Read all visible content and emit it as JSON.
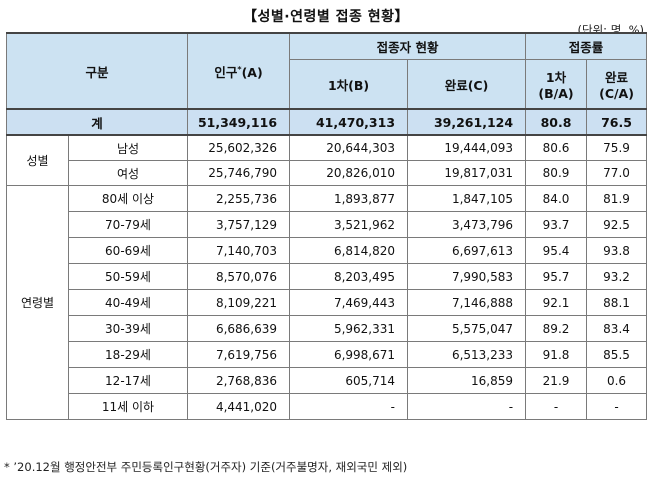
{
  "title": "【성별·연령별 접종 현황】",
  "unit": "(단위: 명, %)",
  "headers": {
    "category": "구분",
    "population": "인구",
    "population_sup": "*",
    "population_unit": "(A)",
    "vaccinated": "접종자 현황",
    "rate": "접종률",
    "first": "1차(B)",
    "complete": "완료(C)",
    "rate_first": "1차",
    "rate_first_sub": "(B/A)",
    "rate_complete": "완료",
    "rate_complete_sub": "(C/A)"
  },
  "total": {
    "label": "계",
    "population": "51,349,116",
    "first": "41,470,313",
    "complete": "39,261,124",
    "rate_first": "80.8",
    "rate_complete": "76.5"
  },
  "sex": {
    "group": "성별",
    "rows": [
      {
        "label": "남성",
        "population": "25,602,326",
        "first": "20,644,303",
        "complete": "19,444,093",
        "rate_first": "80.6",
        "rate_complete": "75.9"
      },
      {
        "label": "여성",
        "population": "25,746,790",
        "first": "20,826,010",
        "complete": "19,817,031",
        "rate_first": "80.9",
        "rate_complete": "77.0"
      }
    ]
  },
  "age": {
    "group": "연령별",
    "rows": [
      {
        "label": "80세 이상",
        "population": "2,255,736",
        "first": "1,893,877",
        "complete": "1,847,105",
        "rate_first": "84.0",
        "rate_complete": "81.9"
      },
      {
        "label": "70-79세",
        "population": "3,757,129",
        "first": "3,521,962",
        "complete": "3,473,796",
        "rate_first": "93.7",
        "rate_complete": "92.5"
      },
      {
        "label": "60-69세",
        "population": "7,140,703",
        "first": "6,814,820",
        "complete": "6,697,613",
        "rate_first": "95.4",
        "rate_complete": "93.8"
      },
      {
        "label": "50-59세",
        "population": "8,570,076",
        "first": "8,203,495",
        "complete": "7,990,583",
        "rate_first": "95.7",
        "rate_complete": "93.2"
      },
      {
        "label": "40-49세",
        "population": "8,109,221",
        "first": "7,469,443",
        "complete": "7,146,888",
        "rate_first": "92.1",
        "rate_complete": "88.1"
      },
      {
        "label": "30-39세",
        "population": "6,686,639",
        "first": "5,962,331",
        "complete": "5,575,047",
        "rate_first": "89.2",
        "rate_complete": "83.4"
      },
      {
        "label": "18-29세",
        "population": "7,619,756",
        "first": "6,998,671",
        "complete": "6,513,233",
        "rate_first": "91.8",
        "rate_complete": "85.5"
      },
      {
        "label": "12-17세",
        "population": "2,768,836",
        "first": "605,714",
        "complete": "16,859",
        "rate_first": "21.9",
        "rate_complete": "0.6"
      },
      {
        "label": "11세 이하",
        "population": "4,441,020",
        "first": "-",
        "complete": "-",
        "rate_first": "-",
        "rate_complete": "-"
      }
    ]
  },
  "footnote": "* ’20.12월 행정안전부 주민등록인구현황(거주자) 기준(거주불명자, 재외국민 제외)"
}
